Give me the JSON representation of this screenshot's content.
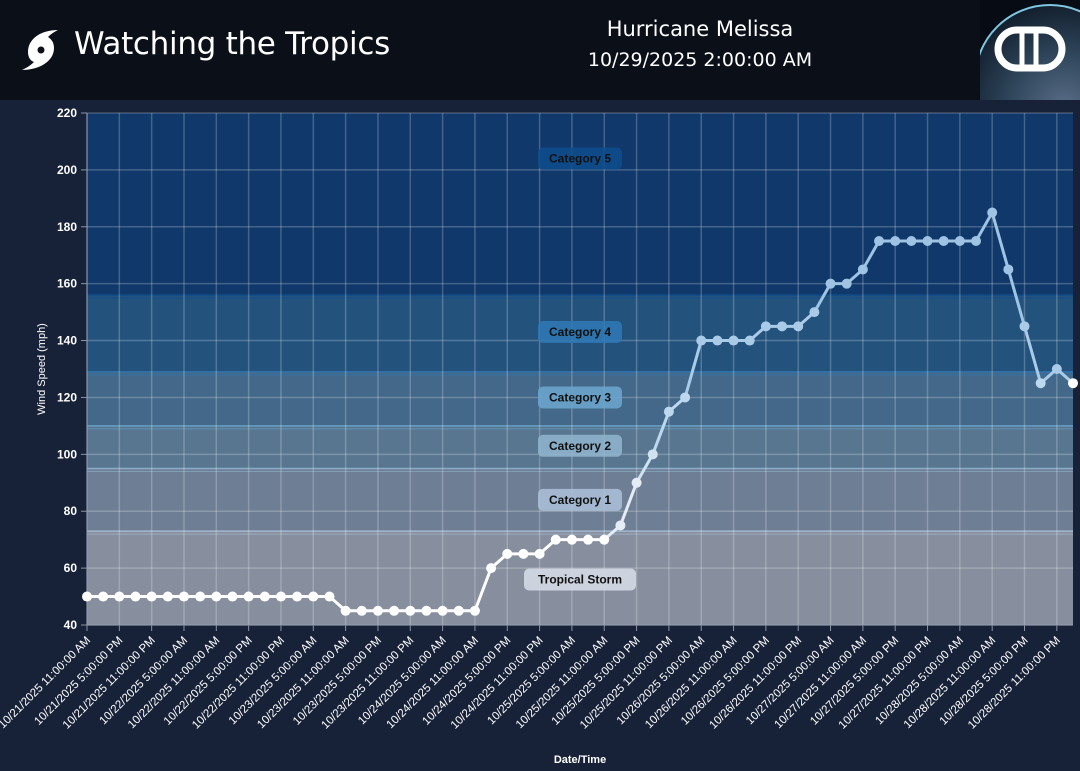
{
  "header": {
    "app_title": "Watching the Tropics",
    "storm_name": "Hurricane Melissa",
    "storm_time": "10/29/2025 2:00:00 AM",
    "logo_icon": "hurricane-icon",
    "brand_logo_text": "DD"
  },
  "chart_data": {
    "type": "line",
    "xlabel": "Date/Time",
    "ylabel": "Wind Speed (mph)",
    "ylim": [
      40,
      220
    ],
    "yticks": [
      40,
      60,
      80,
      100,
      120,
      140,
      160,
      180,
      200,
      220
    ],
    "grid": true,
    "x_start": "10/21/2025 11:00:00 AM",
    "x_interval_hours": 3,
    "x_end": "10/29/2025 2:00:00 AM",
    "xtick_labels": [
      "10/21/2025 11:00:00 AM",
      "10/21/2025 5:00:00 PM",
      "10/21/2025 11:00:00 PM",
      "10/22/2025 5:00:00 AM",
      "10/22/2025 11:00:00 AM",
      "10/22/2025 5:00:00 PM",
      "10/22/2025 11:00:00 PM",
      "10/23/2025 5:00:00 AM",
      "10/23/2025 11:00:00 AM",
      "10/23/2025 5:00:00 PM",
      "10/23/2025 11:00:00 PM",
      "10/24/2025 5:00:00 AM",
      "10/24/2025 11:00:00 AM",
      "10/24/2025 5:00:00 PM",
      "10/24/2025 11:00:00 PM",
      "10/25/2025 5:00:00 AM",
      "10/25/2025 11:00:00 AM",
      "10/25/2025 5:00:00 PM",
      "10/25/2025 11:00:00 PM",
      "10/26/2025 5:00:00 AM",
      "10/26/2025 11:00:00 AM",
      "10/26/2025 5:00:00 PM",
      "10/26/2025 11:00:00 PM",
      "10/27/2025 5:00:00 AM",
      "10/27/2025 11:00:00 AM",
      "10/27/2025 5:00:00 PM",
      "10/27/2025 11:00:00 PM",
      "10/28/2025 5:00:00 AM",
      "10/28/2025 11:00:00 AM",
      "10/28/2025 5:00:00 PM",
      "10/28/2025 11:00:00 PM"
    ],
    "values": [
      50,
      50,
      50,
      50,
      50,
      50,
      50,
      50,
      50,
      50,
      50,
      50,
      50,
      50,
      50,
      50,
      45,
      45,
      45,
      45,
      45,
      45,
      45,
      45,
      45,
      60,
      65,
      65,
      65,
      70,
      70,
      70,
      70,
      75,
      90,
      100,
      115,
      120,
      140,
      140,
      140,
      140,
      145,
      145,
      145,
      150,
      160,
      160,
      165,
      175,
      175,
      175,
      175,
      175,
      175,
      175,
      185,
      165,
      145,
      125,
      130,
      125
    ],
    "bands": [
      {
        "label": "Tropical Storm",
        "min": 40,
        "max": 73,
        "color": "#878e9e",
        "label_bg": "#d4d9e4",
        "line_color": "#ffffff",
        "label_value": 56
      },
      {
        "label": "Category 1",
        "min": 73,
        "max": 95,
        "color": "#6e7e95",
        "label_bg": "#a9bfd6",
        "line_color": "#e4ecf5",
        "label_value": 84
      },
      {
        "label": "Category 2",
        "min": 95,
        "max": 110,
        "color": "#587690",
        "label_bg": "#8fb2cc",
        "line_color": "#cfe2f0",
        "label_value": 103
      },
      {
        "label": "Category 3",
        "min": 110,
        "max": 129,
        "color": "#436889",
        "label_bg": "#6aa4cc",
        "line_color": "#bcd8ee",
        "label_value": 120
      },
      {
        "label": "Category 4",
        "min": 129,
        "max": 156,
        "color": "#23527d",
        "label_bg": "#2f78b4",
        "line_color": "#a9cbe8",
        "label_value": 143
      },
      {
        "label": "Category 5",
        "min": 156,
        "max": 220,
        "color": "#10386a",
        "label_bg": "#0f4c8c",
        "line_color": "#9fc3e3",
        "label_value": 204
      }
    ]
  }
}
